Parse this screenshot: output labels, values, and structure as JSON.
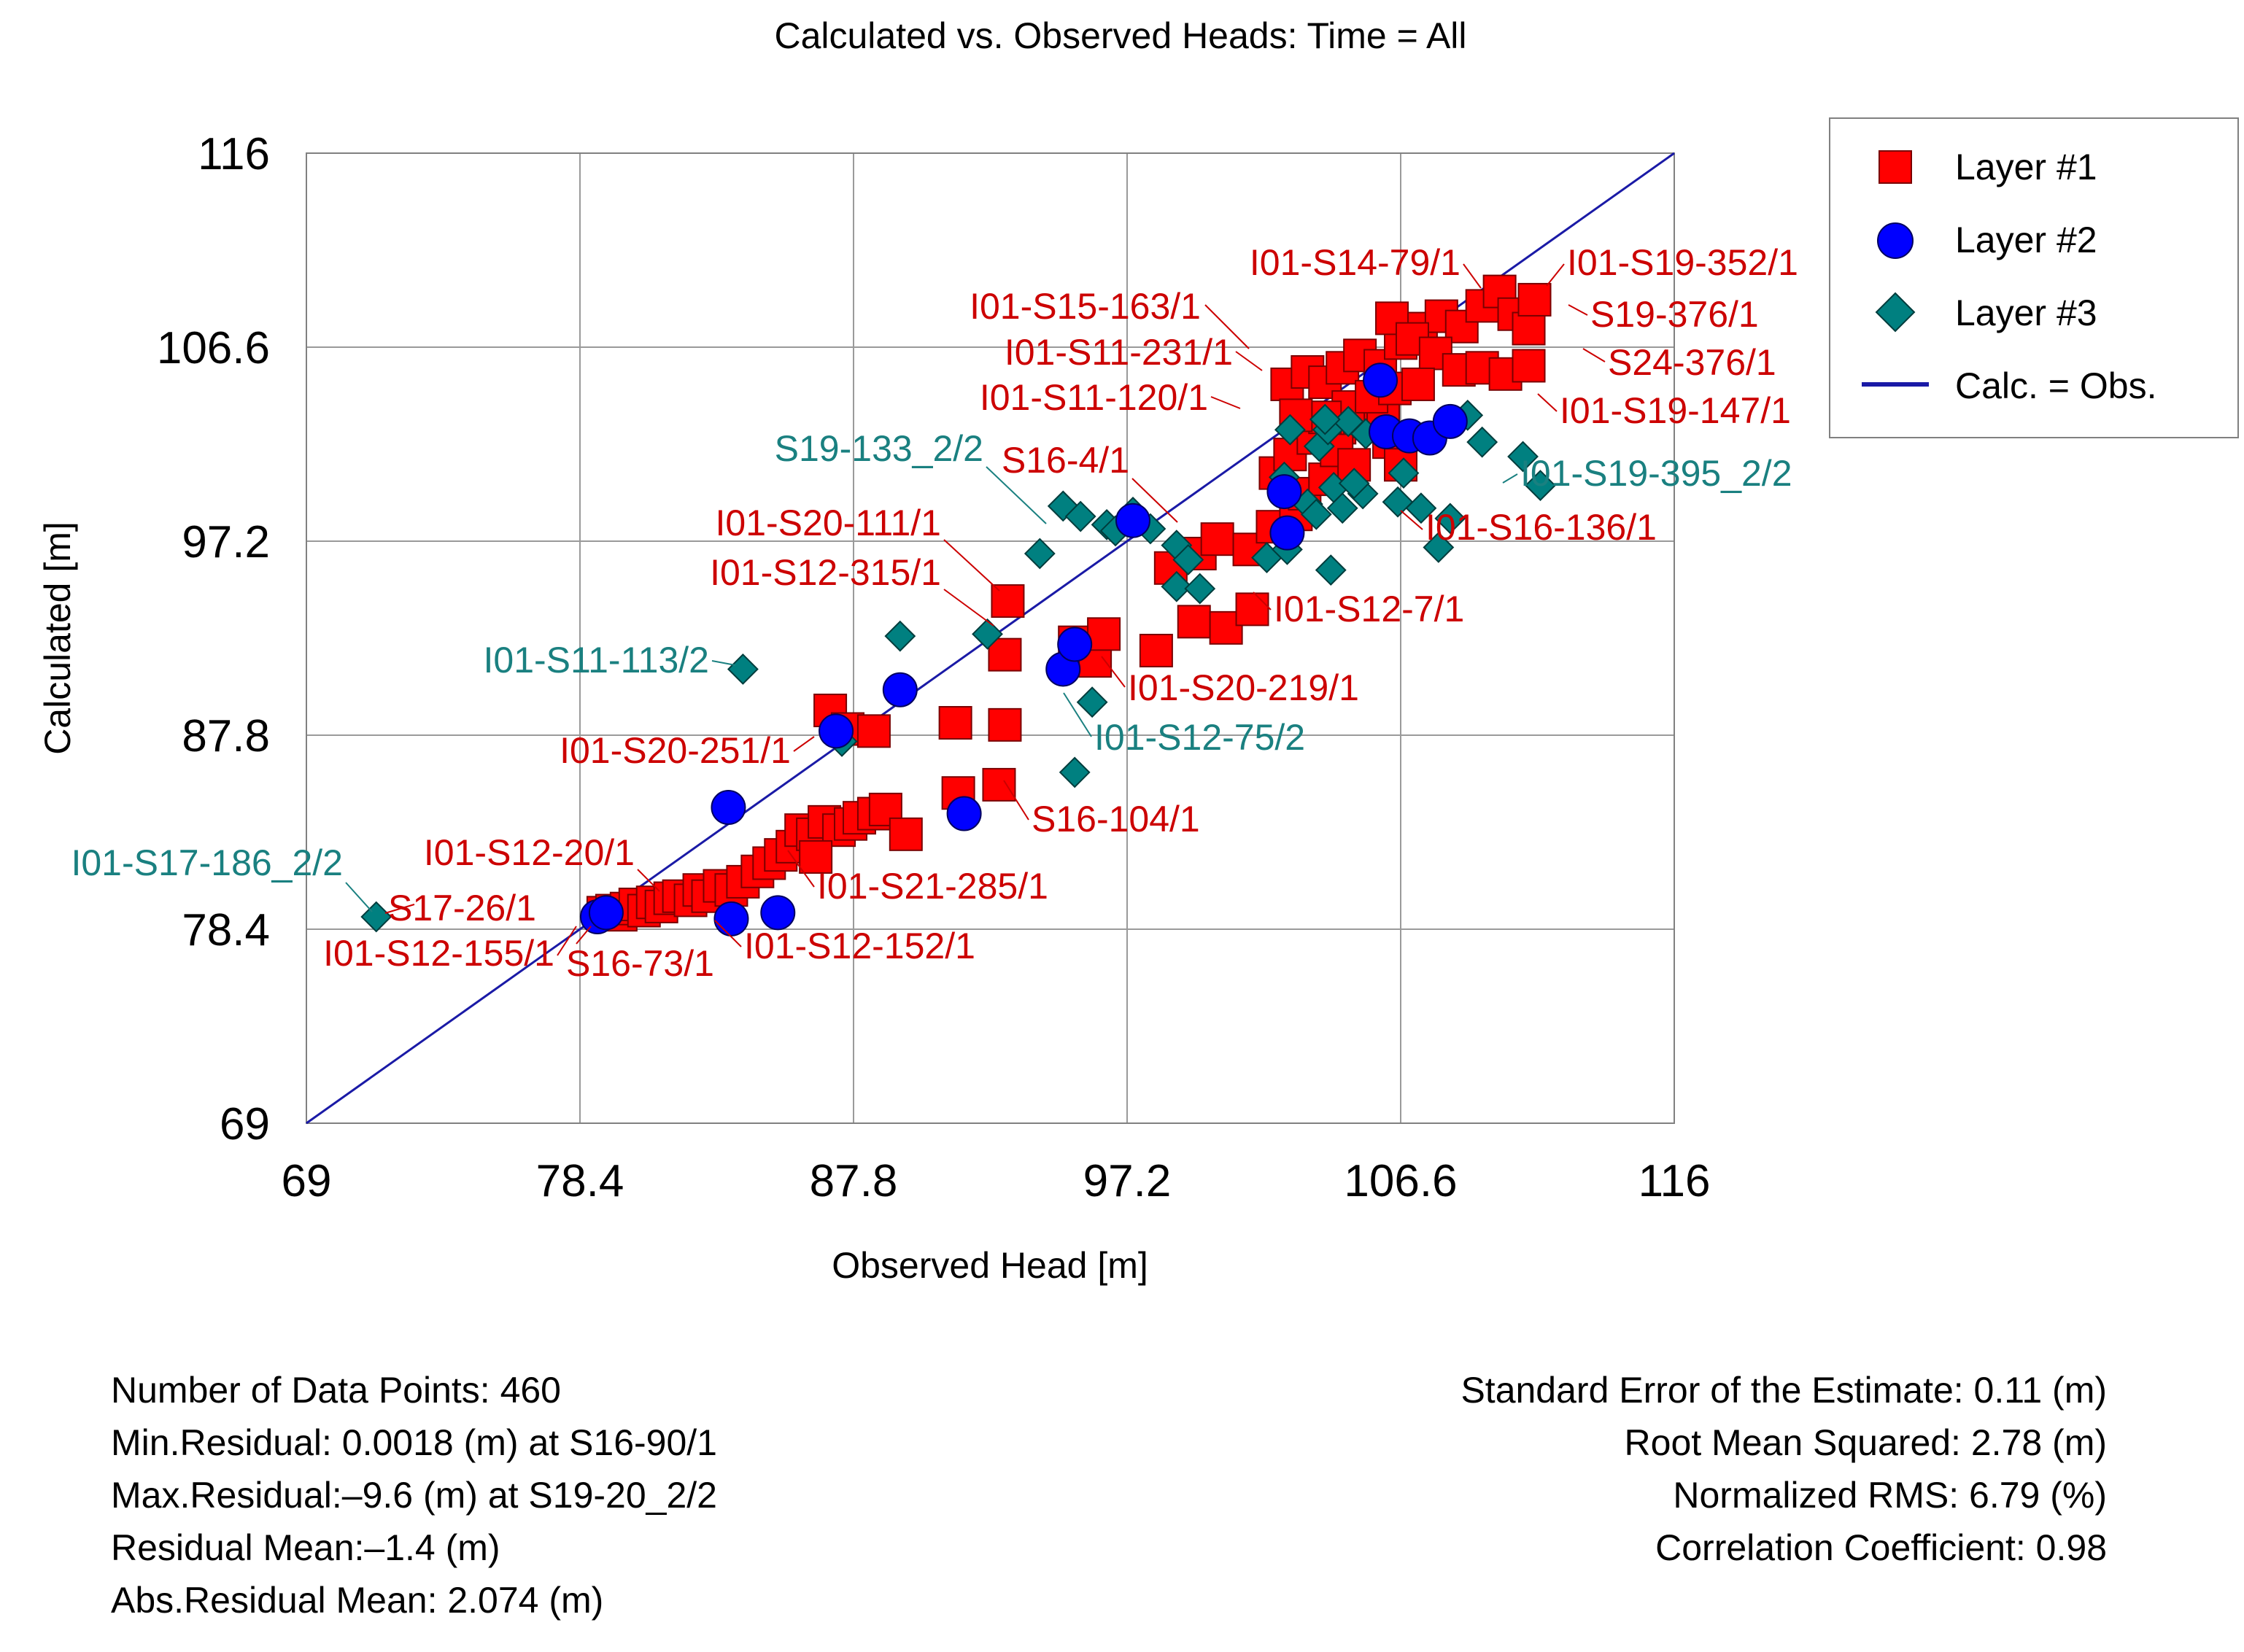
{
  "chart_data": {
    "type": "scatter",
    "title": "Calculated vs. Observed Heads: Time = All",
    "xlabel": "Observed Head [m]",
    "ylabel": "Calculated [m]",
    "xlim": [
      69,
      116
    ],
    "ylim": [
      69,
      116
    ],
    "xticks": [
      "69",
      "78.4",
      "87.8",
      "97.2",
      "106.6",
      "116"
    ],
    "yticks": [
      "69",
      "78.4",
      "87.8",
      "97.2",
      "106.6",
      "116"
    ],
    "grid": true,
    "legend_position": "top-right",
    "legend": [
      "Layer #1",
      "Layer #2",
      "Layer #3",
      "Calc. = Obs."
    ],
    "colors": {
      "layer1": "#ff0000",
      "layer2": "#0000ff",
      "layer3": "#008080",
      "line": "#1a1aa6",
      "label_red": "#cc0000",
      "label_teal": "#1a8080"
    },
    "series": [
      {
        "name": "Layer #1",
        "marker": "square",
        "points": [
          [
            79.2,
            79.2
          ],
          [
            79.5,
            79.3
          ],
          [
            79.8,
            79.1
          ],
          [
            80.0,
            79.4
          ],
          [
            80.3,
            79.6
          ],
          [
            80.6,
            79.3
          ],
          [
            80.9,
            79.7
          ],
          [
            81.2,
            79.5
          ],
          [
            81.5,
            79.9
          ],
          [
            81.8,
            80.0
          ],
          [
            82.2,
            79.8
          ],
          [
            82.5,
            80.3
          ],
          [
            82.8,
            80.0
          ],
          [
            83.2,
            80.5
          ],
          [
            83.6,
            80.3
          ],
          [
            84.0,
            80.7
          ],
          [
            84.5,
            81.2
          ],
          [
            84.9,
            81.6
          ],
          [
            85.3,
            82.0
          ],
          [
            85.7,
            82.4
          ],
          [
            86.0,
            83.2
          ],
          [
            86.4,
            83.0
          ],
          [
            86.8,
            83.6
          ],
          [
            87.3,
            83.2
          ],
          [
            87.7,
            83.5
          ],
          [
            88.0,
            83.8
          ],
          [
            88.5,
            84.0
          ],
          [
            88.9,
            84.2
          ],
          [
            89.6,
            83.0
          ],
          [
            91.4,
            85.0
          ],
          [
            92.8,
            85.4
          ],
          [
            86.5,
            81.9
          ],
          [
            87.0,
            89.0
          ],
          [
            87.6,
            88.1
          ],
          [
            88.5,
            88.0
          ],
          [
            91.3,
            88.4
          ],
          [
            93.0,
            88.3
          ],
          [
            93.0,
            91.7
          ],
          [
            93.1,
            94.3
          ],
          [
            95.4,
            92.3
          ],
          [
            96.1,
            91.4
          ],
          [
            96.4,
            92.7
          ],
          [
            98.2,
            91.9
          ],
          [
            99.5,
            93.3
          ],
          [
            100.6,
            93.0
          ],
          [
            101.5,
            93.9
          ],
          [
            98.7,
            95.9
          ],
          [
            99.7,
            96.6
          ],
          [
            100.3,
            97.3
          ],
          [
            101.4,
            96.8
          ],
          [
            102.2,
            97.9
          ],
          [
            103.0,
            98.5
          ],
          [
            103.3,
            99.5
          ],
          [
            104.0,
            100.2
          ],
          [
            102.3,
            100.5
          ],
          [
            102.8,
            101.4
          ],
          [
            103.6,
            102.2
          ],
          [
            104.5,
            102.7
          ],
          [
            105.2,
            103.0
          ],
          [
            106.0,
            103.3
          ],
          [
            106.2,
            102.0
          ],
          [
            106.6,
            100.9
          ],
          [
            102.7,
            104.8
          ],
          [
            103.4,
            105.4
          ],
          [
            104.0,
            104.9
          ],
          [
            104.6,
            105.6
          ],
          [
            105.2,
            106.2
          ],
          [
            105.9,
            105.7
          ],
          [
            106.6,
            106.8
          ],
          [
            107.3,
            107.5
          ],
          [
            108.0,
            108.1
          ],
          [
            108.7,
            107.6
          ],
          [
            109.4,
            108.6
          ],
          [
            110.0,
            109.3
          ],
          [
            110.5,
            108.2
          ],
          [
            111.0,
            107.5
          ],
          [
            106.3,
            108.0
          ],
          [
            107.0,
            107.0
          ],
          [
            107.8,
            106.3
          ],
          [
            108.6,
            105.5
          ],
          [
            109.4,
            105.6
          ],
          [
            110.2,
            105.3
          ],
          [
            111.0,
            105.7
          ],
          [
            111.2,
            108.9
          ],
          [
            104.8,
            103.7
          ],
          [
            105.6,
            104.2
          ],
          [
            106.4,
            104.6
          ],
          [
            107.2,
            104.8
          ],
          [
            104.0,
            103.2
          ],
          [
            103.0,
            103.3
          ],
          [
            104.4,
            101.6
          ],
          [
            105.0,
            100.9
          ]
        ]
      },
      {
        "name": "Layer #2",
        "marker": "circle",
        "points": [
          [
            79.0,
            79.0
          ],
          [
            79.3,
            79.2
          ],
          [
            83.6,
            78.9
          ],
          [
            85.2,
            79.2
          ],
          [
            83.5,
            84.3
          ],
          [
            87.2,
            88.0
          ],
          [
            89.4,
            90.0
          ],
          [
            91.6,
            84.0
          ],
          [
            95.0,
            91.0
          ],
          [
            95.4,
            92.2
          ],
          [
            97.4,
            98.2
          ],
          [
            102.6,
            99.6
          ],
          [
            102.7,
            97.6
          ],
          [
            105.9,
            105.0
          ],
          [
            106.1,
            102.5
          ],
          [
            106.9,
            102.3
          ],
          [
            107.6,
            102.2
          ],
          [
            108.3,
            103.0
          ]
        ]
      },
      {
        "name": "Layer #3",
        "marker": "diamond",
        "points": [
          [
            71.4,
            79.0
          ],
          [
            84.0,
            91.0
          ],
          [
            87.4,
            87.5
          ],
          [
            89.4,
            92.6
          ],
          [
            92.4,
            92.7
          ],
          [
            94.2,
            96.6
          ],
          [
            95.0,
            98.9
          ],
          [
            95.6,
            98.4
          ],
          [
            96.5,
            98.0
          ],
          [
            96.8,
            97.7
          ],
          [
            97.4,
            98.6
          ],
          [
            98.0,
            97.8
          ],
          [
            98.9,
            97.0
          ],
          [
            99.3,
            96.3
          ],
          [
            98.9,
            95.0
          ],
          [
            99.7,
            94.9
          ],
          [
            102.0,
            96.4
          ],
          [
            102.7,
            96.8
          ],
          [
            102.6,
            100.3
          ],
          [
            103.4,
            99.0
          ],
          [
            103.7,
            98.5
          ],
          [
            104.3,
            99.8
          ],
          [
            104.6,
            98.8
          ],
          [
            105.3,
            99.5
          ],
          [
            103.8,
            101.8
          ],
          [
            104.1,
            102.6
          ],
          [
            104.8,
            103.0
          ],
          [
            105.4,
            102.4
          ],
          [
            106.2,
            102.6
          ],
          [
            106.5,
            99.1
          ],
          [
            106.7,
            100.5
          ],
          [
            107.3,
            98.8
          ],
          [
            107.9,
            96.9
          ],
          [
            108.3,
            98.3
          ],
          [
            108.9,
            103.3
          ],
          [
            109.4,
            102.0
          ],
          [
            110.8,
            101.3
          ],
          [
            111.4,
            99.9
          ],
          [
            104.2,
            95.8
          ],
          [
            95.4,
            86.0
          ],
          [
            96.0,
            89.4
          ],
          [
            102.8,
            102.6
          ],
          [
            104.0,
            103.1
          ],
          [
            105.0,
            100.0
          ]
        ]
      }
    ],
    "reference_line": {
      "name": "Calc. = Obs.",
      "x": [
        69,
        116
      ],
      "y": [
        69,
        116
      ]
    },
    "annotations": [
      {
        "text": "I01-S14-79/1",
        "color": "red"
      },
      {
        "text": "I01-S19-352/1",
        "color": "red"
      },
      {
        "text": "I01-S15-163/1",
        "color": "red"
      },
      {
        "text": "S19-376/1",
        "color": "red"
      },
      {
        "text": "I01-S11-231/1",
        "color": "red"
      },
      {
        "text": "S24-376/1",
        "color": "red"
      },
      {
        "text": "I01-S11-120/1",
        "color": "red"
      },
      {
        "text": "I01-S19-147/1",
        "color": "red"
      },
      {
        "text": "S19-133_2/2",
        "color": "teal"
      },
      {
        "text": "S16-4/1",
        "color": "red"
      },
      {
        "text": "I01-S19-395_2/2",
        "color": "teal"
      },
      {
        "text": "I01-S20-111/1",
        "color": "red"
      },
      {
        "text": "I01-S16-136/1",
        "color": "red"
      },
      {
        "text": "I01-S12-315/1",
        "color": "red"
      },
      {
        "text": "I01-S12-7/1",
        "color": "red"
      },
      {
        "text": "I01-S11-113/2",
        "color": "teal"
      },
      {
        "text": "I01-S20-219/1",
        "color": "red"
      },
      {
        "text": "I01-S20-251/1",
        "color": "red"
      },
      {
        "text": "I01-S12-75/2",
        "color": "teal"
      },
      {
        "text": "S16-104/1",
        "color": "red"
      },
      {
        "text": "I01-S12-20/1",
        "color": "red"
      },
      {
        "text": "I01-S21-285/1",
        "color": "red"
      },
      {
        "text": "I01-S17-186_2/2",
        "color": "teal"
      },
      {
        "text": "S17-26/1",
        "color": "red"
      },
      {
        "text": "I01-S12-155/1",
        "color": "red"
      },
      {
        "text": "S16-73/1",
        "color": "red"
      },
      {
        "text": "I01-S12-152/1",
        "color": "red"
      }
    ]
  },
  "stats": {
    "left": [
      "Number of Data Points: 460",
      "Min.Residual: 0.0018 (m) at S16-90/1",
      "Max.Residual:–9.6 (m) at S19-20_2/2",
      "Residual Mean:–1.4 (m)",
      "Abs.Residual Mean: 2.074 (m)"
    ],
    "right": [
      "Standard Error of the Estimate: 0.11 (m)",
      "Root Mean Squared: 2.78 (m)",
      "Normalized RMS: 6.79 (%)",
      "Correlation Coefficient: 0.98"
    ]
  }
}
